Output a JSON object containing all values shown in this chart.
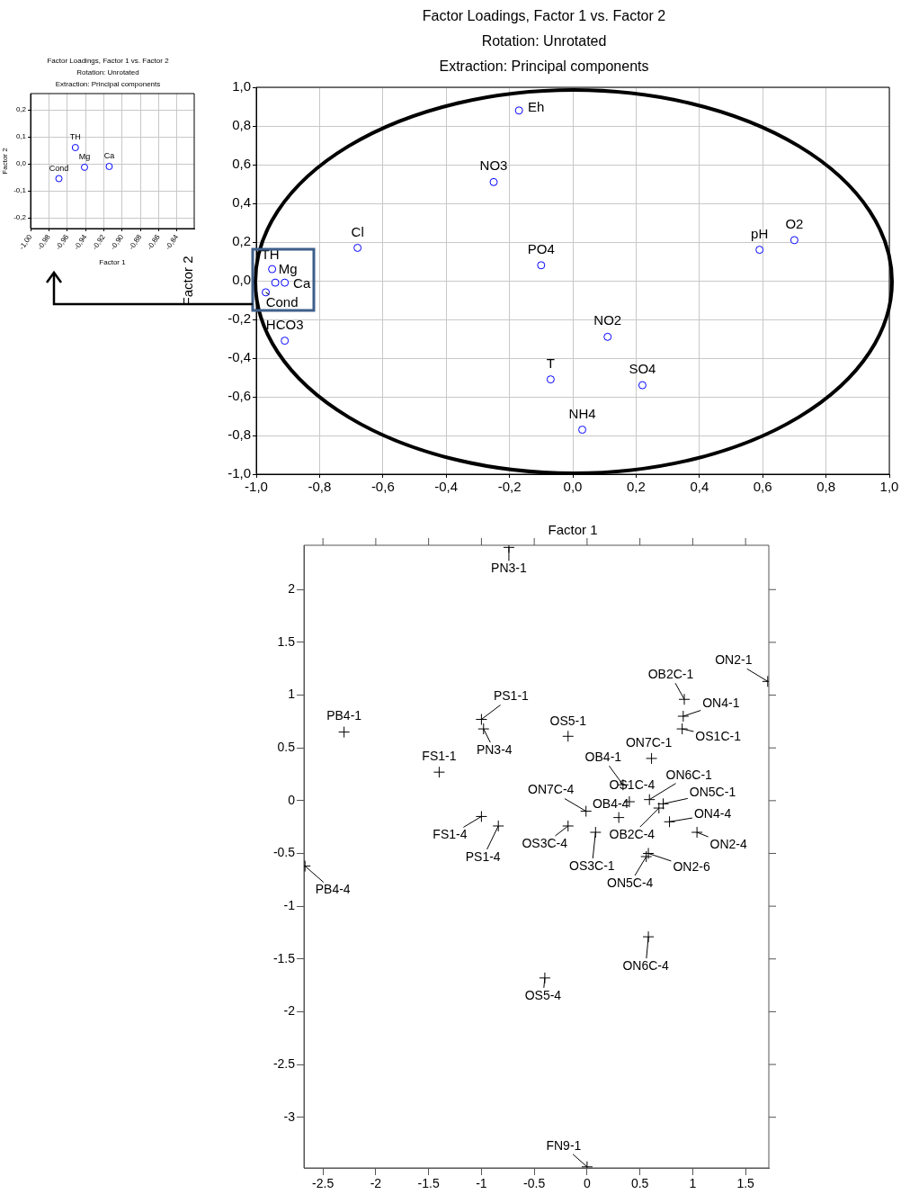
{
  "chart_data": [
    {
      "type": "scatter",
      "title": "Factor Loadings, Factor 1 vs. Factor 2",
      "subtitle": "Rotation: Unrotated\nExtraction: Principal components",
      "xlabel": "Factor 1",
      "ylabel": "Factor 2",
      "x": [
        -0.951,
        -0.941,
        -0.914,
        -0.969
      ],
      "series": [
        {
          "color": "#0000ff",
          "values": [
            0.06,
            -0.013,
            -0.01,
            -0.055
          ]
        }
      ],
      "xlim": [
        -1.0,
        -0.821
      ],
      "ylim": [
        -0.24,
        0.26
      ],
      "xticks": [
        {
          "value": -1.0,
          "label": "-1,00"
        },
        {
          "value": -0.98,
          "label": "-0,98"
        },
        {
          "value": -0.96,
          "label": "-0,96"
        },
        {
          "value": -0.94,
          "label": "-0,94"
        },
        {
          "value": -0.92,
          "label": "-0,92"
        },
        {
          "value": -0.9,
          "label": "-0,90"
        },
        {
          "value": -0.88,
          "label": "-0,88"
        },
        {
          "value": -0.86,
          "label": "-0,86"
        },
        {
          "value": -0.84,
          "label": "-0,84"
        }
      ],
      "yticks": [
        {
          "value": -0.2,
          "label": "-0,2"
        },
        {
          "value": -0.1,
          "label": "-0,1"
        },
        {
          "value": 0,
          "label": "0,0"
        },
        {
          "value": 0.1,
          "label": "0,1"
        },
        {
          "value": 0.2,
          "label": "0,2"
        }
      ],
      "grid": true,
      "marker": "circle",
      "annotations": [
        {
          "text": "TH",
          "x": -0.951,
          "y": 0.06
        },
        {
          "text": "Mg",
          "x": -0.941,
          "y": -0.013
        },
        {
          "text": "Ca",
          "x": -0.914,
          "y": -0.01
        },
        {
          "text": "Cond",
          "x": -0.969,
          "y": -0.055
        }
      ]
    },
    {
      "type": "scatter",
      "title": "Factor Loadings, Factor 1 vs. Factor 2",
      "subtitle": "Rotation: Unrotated\nExtraction: Principal components",
      "xlabel": "Factor 1",
      "ylabel": "Factor 2",
      "x": [
        -0.17,
        -0.25,
        -0.68,
        -0.1,
        0.59,
        0.7,
        -0.95,
        -0.94,
        -0.91,
        -0.97,
        -0.91,
        0.11,
        -0.07,
        0.22,
        0.03
      ],
      "series": [
        {
          "color": "#0000ff",
          "values": [
            0.88,
            0.51,
            0.17,
            0.08,
            0.16,
            0.21,
            0.06,
            -0.01,
            -0.01,
            -0.06,
            -0.31,
            -0.29,
            -0.51,
            -0.54,
            -0.77
          ]
        }
      ],
      "xlim": [
        -1.0,
        1.0
      ],
      "ylim": [
        -1.0,
        1.0
      ],
      "xticks": [
        {
          "value": -1.0,
          "label": "-1,0"
        },
        {
          "value": -0.8,
          "label": "-0,8"
        },
        {
          "value": -0.6,
          "label": "-0,6"
        },
        {
          "value": -0.4,
          "label": "-0,4"
        },
        {
          "value": -0.2,
          "label": "-0,2"
        },
        {
          "value": 0,
          "label": "0,0"
        },
        {
          "value": 0.2,
          "label": "0,2"
        },
        {
          "value": 0.4,
          "label": "0,4"
        },
        {
          "value": 0.6,
          "label": "0,6"
        },
        {
          "value": 0.8,
          "label": "0,8"
        },
        {
          "value": 1.0,
          "label": "1,0"
        }
      ],
      "yticks": [
        {
          "value": -1.0,
          "label": "-1,0"
        },
        {
          "value": -0.8,
          "label": "-0,8"
        },
        {
          "value": -0.6,
          "label": "-0,6"
        },
        {
          "value": -0.4,
          "label": "-0,4"
        },
        {
          "value": -0.2,
          "label": "-0,2"
        },
        {
          "value": 0,
          "label": "0,0"
        },
        {
          "value": 0.2,
          "label": "0,2"
        },
        {
          "value": 0.4,
          "label": "0,4"
        },
        {
          "value": 0.6,
          "label": "0,6"
        },
        {
          "value": 0.8,
          "label": "0,8"
        },
        {
          "value": 1.0,
          "label": "1,0"
        }
      ],
      "grid": true,
      "marker": "circle",
      "annotations": [
        {
          "text": "Eh",
          "x": -0.17,
          "y": 0.88
        },
        {
          "text": "NO3",
          "x": -0.25,
          "y": 0.51
        },
        {
          "text": "Cl",
          "x": -0.68,
          "y": 0.17
        },
        {
          "text": "PO4",
          "x": -0.1,
          "y": 0.08
        },
        {
          "text": "pH",
          "x": 0.59,
          "y": 0.16
        },
        {
          "text": "O2",
          "x": 0.7,
          "y": 0.21
        },
        {
          "text": "TH",
          "x": -0.95,
          "y": 0.06
        },
        {
          "text": "Mg",
          "x": -0.94,
          "y": -0.01
        },
        {
          "text": "Ca",
          "x": -0.91,
          "y": -0.01
        },
        {
          "text": "Cond",
          "x": -0.97,
          "y": -0.06
        },
        {
          "text": "HCO3",
          "x": -0.91,
          "y": -0.31
        },
        {
          "text": "NO2",
          "x": 0.11,
          "y": -0.29
        },
        {
          "text": "T",
          "x": -0.07,
          "y": -0.51
        },
        {
          "text": "SO4",
          "x": 0.22,
          "y": -0.54
        },
        {
          "text": "NH4",
          "x": 0.03,
          "y": -0.77
        }
      ]
    },
    {
      "type": "scatter",
      "x": [
        -0.74,
        1.71,
        0.92,
        0.91,
        0.9,
        -1.0,
        -0.98,
        -2.3,
        -0.18,
        0.61,
        0.34,
        -1.4,
        0.4,
        0.59,
        0.72,
        0.68,
        0.78,
        1.04,
        0.3,
        -0.01,
        -0.18,
        0.08,
        0.58,
        0.56,
        -1.0,
        -0.84,
        -2.67,
        0.58,
        -0.4,
        0.0
      ],
      "series": [
        {
          "color": "#000000",
          "values": [
            2.4,
            1.13,
            0.96,
            0.8,
            0.68,
            0.77,
            0.68,
            0.65,
            0.61,
            0.4,
            0.15,
            0.27,
            -0.01,
            0.01,
            -0.03,
            -0.07,
            -0.2,
            -0.3,
            -0.16,
            -0.1,
            -0.24,
            -0.3,
            -0.5,
            -0.53,
            -0.15,
            -0.24,
            -0.62,
            -1.29,
            -1.68,
            -3.47
          ]
        }
      ],
      "xlim": [
        -2.68,
        1.72
      ],
      "ylim": [
        -3.48,
        2.42
      ],
      "xticks": [
        -2.5,
        -2,
        -1.5,
        -1,
        -0.5,
        0,
        0.5,
        1,
        1.5
      ],
      "yticks": [
        -3,
        -2.5,
        -2,
        -1.5,
        -1,
        -0.5,
        0,
        0.5,
        1,
        1.5,
        2
      ],
      "marker": "cross",
      "annotations": [
        {
          "text": "PN3-1",
          "x": -0.74,
          "y": 2.4
        },
        {
          "text": "ON2-1",
          "x": 1.71,
          "y": 1.13
        },
        {
          "text": "OB2C-1",
          "x": 0.92,
          "y": 0.96
        },
        {
          "text": "ON4-1",
          "x": 0.91,
          "y": 0.8
        },
        {
          "text": "OS1C-1",
          "x": 0.9,
          "y": 0.68
        },
        {
          "text": "PS1-1",
          "x": -1.0,
          "y": 0.77
        },
        {
          "text": "PN3-4",
          "x": -0.98,
          "y": 0.68
        },
        {
          "text": "PB4-1",
          "x": -2.3,
          "y": 0.65
        },
        {
          "text": "OS5-1",
          "x": -0.18,
          "y": 0.61
        },
        {
          "text": "ON7C-1",
          "x": 0.61,
          "y": 0.4
        },
        {
          "text": "OB4-1",
          "x": 0.34,
          "y": 0.15
        },
        {
          "text": "FS1-1",
          "x": -1.4,
          "y": 0.27
        },
        {
          "text": "OS1C-4",
          "x": 0.4,
          "y": -0.01
        },
        {
          "text": "ON6C-1",
          "x": 0.59,
          "y": 0.01
        },
        {
          "text": "ON5C-1",
          "x": 0.72,
          "y": -0.03
        },
        {
          "text": "OB2C-4",
          "x": 0.68,
          "y": -0.07
        },
        {
          "text": "ON4-4",
          "x": 0.78,
          "y": -0.2
        },
        {
          "text": "ON2-4",
          "x": 1.04,
          "y": -0.3
        },
        {
          "text": "OB4-4",
          "x": 0.3,
          "y": -0.16
        },
        {
          "text": "ON7C-4",
          "x": -0.01,
          "y": -0.1
        },
        {
          "text": "OS3C-4",
          "x": -0.18,
          "y": -0.24
        },
        {
          "text": "OS3C-1",
          "x": 0.08,
          "y": -0.3
        },
        {
          "text": "ON2-6",
          "x": 0.58,
          "y": -0.5
        },
        {
          "text": "ON5C-4",
          "x": 0.56,
          "y": -0.53
        },
        {
          "text": "FS1-4",
          "x": -1.0,
          "y": -0.15
        },
        {
          "text": "PS1-4",
          "x": -0.84,
          "y": -0.24
        },
        {
          "text": "PB4-4",
          "x": -2.67,
          "y": -0.62
        },
        {
          "text": "ON6C-4",
          "x": 0.58,
          "y": -1.29
        },
        {
          "text": "OS5-4",
          "x": -0.4,
          "y": -1.68
        },
        {
          "text": "FN9-1",
          "x": 0.0,
          "y": -3.47
        }
      ]
    }
  ]
}
